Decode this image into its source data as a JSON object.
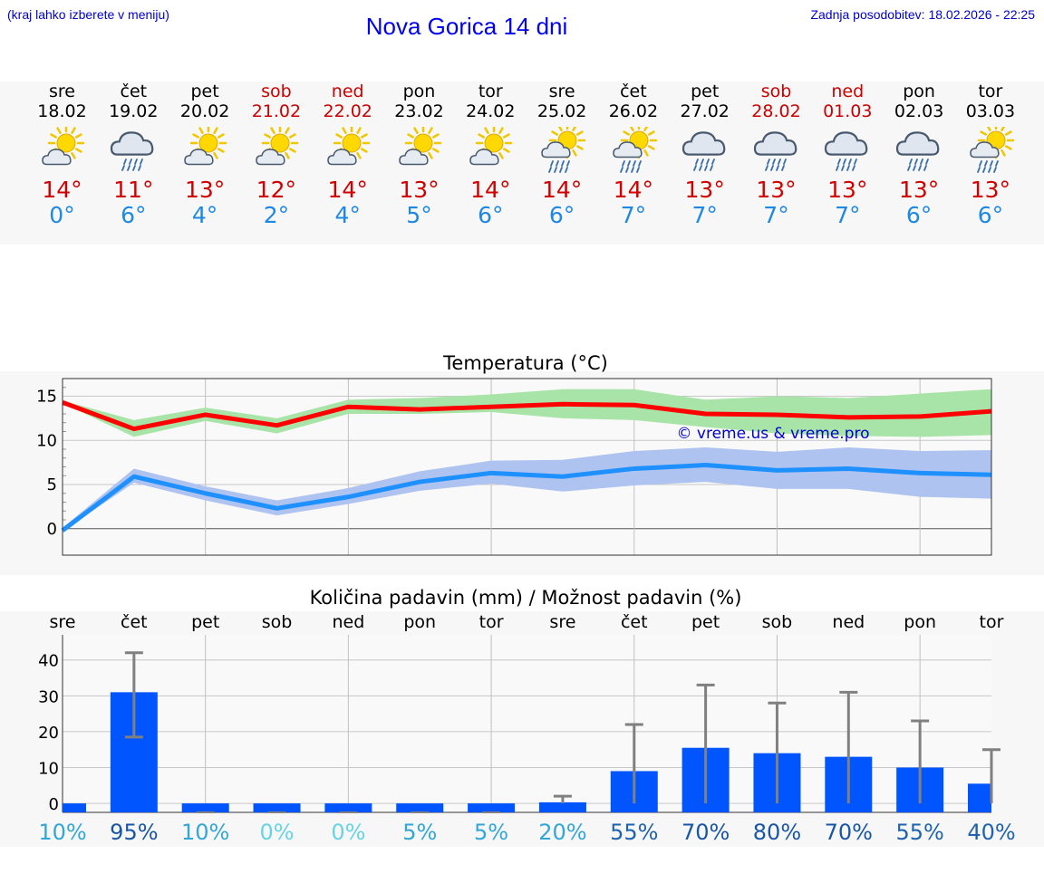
{
  "header": {
    "hint": "(kraj lahko izberete v meniju)",
    "title": "Nova Gorica 14 dni",
    "updated": "Zadnja posodobitev: 18.02.2026 - 22:25"
  },
  "days": [
    {
      "wd": "sre",
      "date": "18.02",
      "icon": "sun-cloud",
      "hi": "14°",
      "lo": "0°",
      "weekend": false
    },
    {
      "wd": "čet",
      "date": "19.02",
      "icon": "cloud-rain",
      "hi": "11°",
      "lo": "6°",
      "weekend": false
    },
    {
      "wd": "pet",
      "date": "20.02",
      "icon": "sun-cloud",
      "hi": "13°",
      "lo": "4°",
      "weekend": false
    },
    {
      "wd": "sob",
      "date": "21.02",
      "icon": "sun-cloud",
      "hi": "12°",
      "lo": "2°",
      "weekend": true
    },
    {
      "wd": "ned",
      "date": "22.02",
      "icon": "sun-cloud",
      "hi": "14°",
      "lo": "4°",
      "weekend": true
    },
    {
      "wd": "pon",
      "date": "23.02",
      "icon": "sun-cloud",
      "hi": "13°",
      "lo": "5°",
      "weekend": false
    },
    {
      "wd": "tor",
      "date": "24.02",
      "icon": "sun-cloud",
      "hi": "14°",
      "lo": "6°",
      "weekend": false
    },
    {
      "wd": "sre",
      "date": "25.02",
      "icon": "sun-cloud-rain",
      "hi": "14°",
      "lo": "6°",
      "weekend": false
    },
    {
      "wd": "čet",
      "date": "26.02",
      "icon": "sun-cloud-rain",
      "hi": "14°",
      "lo": "7°",
      "weekend": false
    },
    {
      "wd": "pet",
      "date": "27.02",
      "icon": "cloud-rain",
      "hi": "13°",
      "lo": "7°",
      "weekend": false
    },
    {
      "wd": "sob",
      "date": "28.02",
      "icon": "cloud-rain",
      "hi": "13°",
      "lo": "7°",
      "weekend": true
    },
    {
      "wd": "ned",
      "date": "01.03",
      "icon": "cloud-rain",
      "hi": "13°",
      "lo": "7°",
      "weekend": true
    },
    {
      "wd": "pon",
      "date": "02.03",
      "icon": "cloud-rain",
      "hi": "13°",
      "lo": "6°",
      "weekend": false
    },
    {
      "wd": "tor",
      "date": "03.03",
      "icon": "sun-cloud-rain",
      "hi": "13°",
      "lo": "6°",
      "weekend": false
    }
  ],
  "colors": {
    "max_line": "#ff0000",
    "max_band": "#a8e4a8",
    "min_line": "#1e90ff",
    "min_band": "#aec3f0",
    "bar": "#0055ff",
    "err": "#808080",
    "weekend": "#cc0000"
  },
  "chart_data": [
    {
      "type": "line",
      "title": "Temperatura (°C)",
      "watermark": "© vreme.us & vreme.pro",
      "x": [
        0,
        1,
        2,
        3,
        4,
        5,
        6,
        7,
        8,
        9,
        10,
        11,
        12,
        13
      ],
      "ylim": [
        -3,
        17
      ],
      "yticks": [
        0,
        5,
        10,
        15
      ],
      "series": [
        {
          "name": "max",
          "values": [
            14.3,
            11.3,
            12.9,
            11.7,
            13.8,
            13.5,
            13.8,
            14.1,
            14.0,
            13.0,
            12.9,
            12.6,
            12.7,
            13.3
          ],
          "band_low": [
            14.2,
            10.4,
            12.2,
            10.8,
            13.0,
            13.0,
            13.2,
            12.5,
            12.3,
            11.5,
            10.8,
            10.5,
            10.4,
            10.6
          ],
          "band_high": [
            14.5,
            12.3,
            13.7,
            12.5,
            14.6,
            14.8,
            15.2,
            15.8,
            15.8,
            14.6,
            15.0,
            14.8,
            15.3,
            15.8
          ]
        },
        {
          "name": "min",
          "values": [
            -0.2,
            5.9,
            4.0,
            2.3,
            3.6,
            5.3,
            6.3,
            5.9,
            6.8,
            7.2,
            6.6,
            6.8,
            6.3,
            6.1
          ],
          "band_low": [
            -0.3,
            5.2,
            3.2,
            1.5,
            2.8,
            4.3,
            5.1,
            4.2,
            4.9,
            5.3,
            4.5,
            4.5,
            3.6,
            3.4
          ],
          "band_high": [
            0.1,
            6.8,
            4.8,
            3.2,
            4.6,
            6.5,
            7.7,
            7.8,
            8.8,
            9.2,
            8.7,
            9.2,
            8.8,
            8.9
          ]
        }
      ]
    },
    {
      "type": "bar",
      "title": "Količina padavin (mm) / Možnost padavin (%)",
      "categories": [
        "sre",
        "čet",
        "pet",
        "sob",
        "ned",
        "pon",
        "tor",
        "sre",
        "čet",
        "pet",
        "sob",
        "ned",
        "pon",
        "tor"
      ],
      "values": [
        0,
        31,
        0,
        0,
        0,
        0,
        0,
        0.3,
        9,
        15.5,
        14,
        13,
        10,
        5.5
      ],
      "err_high": [
        0,
        42,
        0,
        0,
        0,
        0,
        0,
        2,
        22,
        33,
        28,
        31,
        23,
        15
      ],
      "err_low": [
        0,
        18.5,
        0,
        0,
        0,
        0,
        0,
        0,
        0,
        0,
        0,
        0,
        0,
        0
      ],
      "probability": [
        "10%",
        "95%",
        "10%",
        "0%",
        "0%",
        "5%",
        "5%",
        "20%",
        "55%",
        "70%",
        "80%",
        "70%",
        "55%",
        "40%"
      ],
      "prob_values": [
        10,
        95,
        10,
        0,
        0,
        5,
        5,
        20,
        55,
        70,
        80,
        70,
        55,
        40
      ],
      "ylim": [
        -2.5,
        47
      ],
      "yticks": [
        0,
        10,
        20,
        30,
        40
      ]
    }
  ]
}
